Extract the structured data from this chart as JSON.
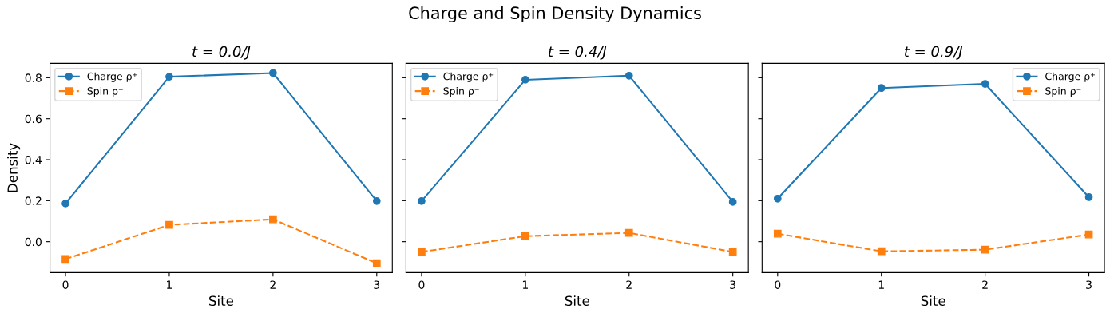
{
  "chart_data": [
    {
      "type": "line",
      "annotations": [
        "Charge and Spin Density Dynamics"
      ],
      "title": "t = 0.0/J",
      "xlabel": "Site",
      "ylabel": "Density",
      "x": [
        0,
        1,
        2,
        3
      ],
      "xlim": [
        -0.15,
        3.15
      ],
      "xticks": [
        0,
        1,
        2,
        3
      ],
      "ylim": [
        -0.151,
        0.87
      ],
      "yticks": [
        {
          "value": 0,
          "label": "0.0"
        },
        0.2,
        0.4,
        0.6,
        0.8
      ],
      "legend": "top left",
      "grid": false,
      "series": [
        {
          "name": "Charge ρ⁺",
          "color": "#1f77b4",
          "marker": "circle",
          "line_style": "solid",
          "values": [
            0.186,
            0.805,
            0.823,
            0.198
          ]
        },
        {
          "name": "Spin ρ⁻",
          "color": "#ff7f0e",
          "marker": "square",
          "line_style": "dashed",
          "values": [
            -0.085,
            0.082,
            0.109,
            -0.105
          ]
        }
      ]
    },
    {
      "type": "line",
      "title": "t = 0.4/J",
      "xlabel": "Site",
      "x": [
        0,
        1,
        2,
        3
      ],
      "xlim": [
        -0.15,
        3.15
      ],
      "xticks": [
        0,
        1,
        2,
        3
      ],
      "ylim": [
        -0.151,
        0.87
      ],
      "yticks": [
        0.0,
        0.2,
        0.4,
        0.6,
        0.8
      ],
      "tick_labels": "x",
      "legend": "top left",
      "grid": false,
      "series": [
        {
          "name": "Charge ρ⁺",
          "color": "#1f77b4",
          "marker": "circle",
          "line_style": "solid",
          "values": [
            0.198,
            0.79,
            0.81,
            0.194
          ]
        },
        {
          "name": "Spin ρ⁻",
          "color": "#ff7f0e",
          "marker": "square",
          "line_style": "dashed",
          "values": [
            -0.05,
            0.027,
            0.043,
            -0.05
          ]
        }
      ]
    },
    {
      "type": "line",
      "title": "t = 0.9/J",
      "xlabel": "Site",
      "x": [
        0,
        1,
        2,
        3
      ],
      "xlim": [
        -0.15,
        3.15
      ],
      "xticks": [
        0,
        1,
        2,
        3
      ],
      "ylim": [
        -0.151,
        0.87
      ],
      "yticks": [
        0.0,
        0.2,
        0.4,
        0.6,
        0.8
      ],
      "tick_labels": "x",
      "legend": "top right",
      "grid": false,
      "series": [
        {
          "name": "Charge ρ⁺",
          "color": "#1f77b4",
          "marker": "circle",
          "line_style": "solid",
          "values": [
            0.21,
            0.75,
            0.77,
            0.217
          ]
        },
        {
          "name": "Spin ρ⁻",
          "color": "#ff7f0e",
          "marker": "square",
          "line_style": "dashed",
          "values": [
            0.039,
            -0.047,
            -0.039,
            0.035
          ]
        }
      ]
    }
  ]
}
